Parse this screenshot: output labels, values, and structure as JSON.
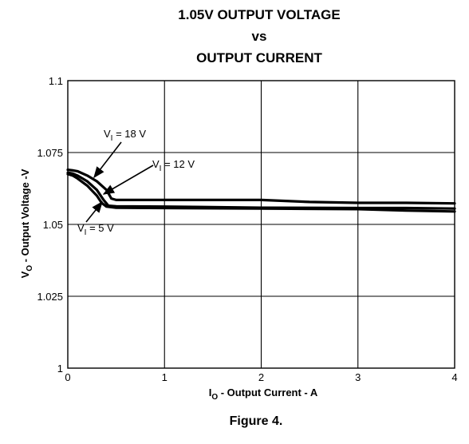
{
  "chart_data": {
    "type": "line",
    "title": [
      "1.05V OUTPUT VOLTAGE",
      "vs",
      "OUTPUT CURRENT"
    ],
    "xlabel": {
      "main": "I",
      "sub": "O",
      "rest": " - Output Current - A"
    },
    "ylabel": {
      "main": "V",
      "sub": "O",
      "rest": " - Output Voltage -V"
    },
    "xlim": [
      0,
      4
    ],
    "ylim": [
      1,
      1.1
    ],
    "xticks": [
      "0",
      "1",
      "2",
      "3",
      "4"
    ],
    "yticks": [
      "1",
      "1.025",
      "1.05",
      "1.075",
      "1.1"
    ],
    "grid": true,
    "series": [
      {
        "name": "VI = 18 V",
        "x": [
          0,
          0.05,
          0.1,
          0.2,
          0.3,
          0.4,
          0.45,
          0.5,
          1,
          2,
          2.5,
          3,
          3.5,
          4
        ],
        "y": [
          1.069,
          1.0688,
          1.0685,
          1.067,
          1.065,
          1.062,
          1.059,
          1.0585,
          1.0585,
          1.0585,
          1.0578,
          1.0575,
          1.0575,
          1.0573
        ]
      },
      {
        "name": "VI = 12 V",
        "x": [
          0,
          0.05,
          0.1,
          0.2,
          0.3,
          0.37,
          0.42,
          0.5,
          1,
          2,
          3,
          3.5,
          4
        ],
        "y": [
          1.068,
          1.0677,
          1.067,
          1.065,
          1.062,
          1.0585,
          1.0565,
          1.0563,
          1.0562,
          1.0558,
          1.0557,
          1.0557,
          1.0555
        ]
      },
      {
        "name": "VI = 5 V",
        "x": [
          0,
          0.05,
          0.1,
          0.2,
          0.3,
          0.35,
          0.4,
          0.5,
          1,
          2,
          3,
          3.5,
          4
        ],
        "y": [
          1.0675,
          1.067,
          1.066,
          1.0635,
          1.06,
          1.0575,
          1.0562,
          1.0558,
          1.0557,
          1.0555,
          1.0553,
          1.0548,
          1.0545
        ]
      }
    ],
    "annotations": [
      {
        "series": 0,
        "main": "V",
        "sub": "I",
        "rest": " = 18 V"
      },
      {
        "series": 1,
        "main": "V",
        "sub": "I",
        "rest": " = 12 V"
      },
      {
        "series": 2,
        "main": "V",
        "sub": "I",
        "rest": " = 5 V"
      }
    ]
  },
  "caption": "Figure 4.",
  "colors": {
    "line": "#000000",
    "grid": "#000000",
    "background": "#ffffff"
  }
}
